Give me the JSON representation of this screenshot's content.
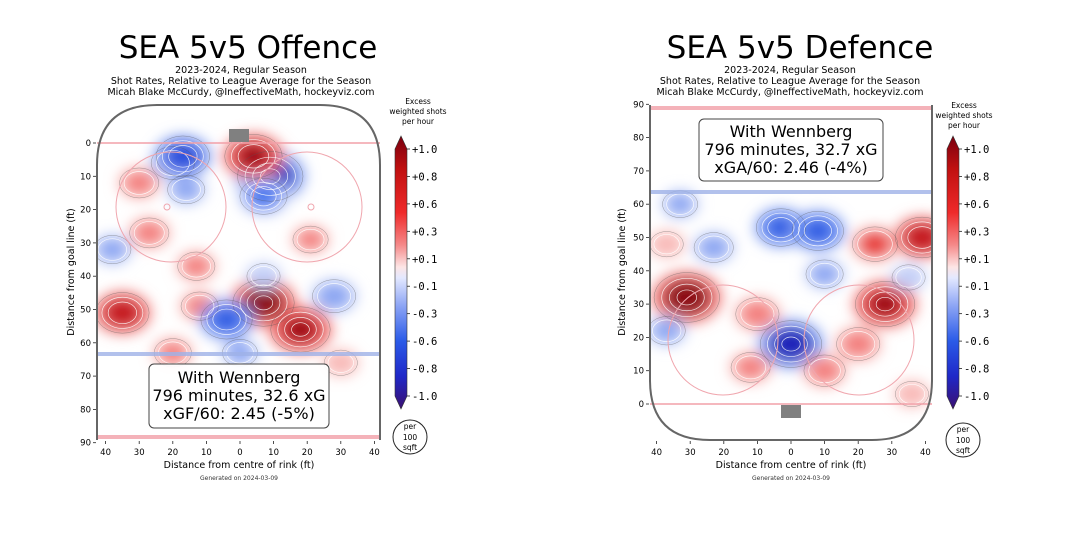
{
  "chart_data": [
    {
      "type": "heatmap",
      "title": "SEA 5v5 Offence",
      "subtitle_lines": [
        "2023-2024, Regular Season",
        "Shot Rates, Relative to League Average for the Season",
        "Micah Blake McCurdy, @IneffectiveMath, hockeyviz.com"
      ],
      "xlabel": "Distance from centre of rink (ft)",
      "ylabel": "Distance from goal line (ft)",
      "x_ticks": [
        "40",
        "30",
        "20",
        "10",
        "0",
        "10",
        "20",
        "30",
        "40"
      ],
      "y_ticks": [
        0,
        10,
        20,
        30,
        40,
        50,
        60,
        70,
        80,
        90
      ],
      "y_direction": "down",
      "xlim": [
        -42,
        42
      ],
      "ylim": [
        -4,
        90
      ],
      "annotation_lines": [
        "With Wennberg",
        "796 minutes, 32.6 xG",
        "xGF/60: 2.45 (-5%)"
      ],
      "colorbar_label_lines": [
        "Excess",
        "weighted shots",
        "per hour"
      ],
      "colorbar_ticks": [
        "+1.0",
        "+0.8",
        "+0.6",
        "+0.3",
        "+0.1",
        "-0.1",
        "-0.3",
        "-0.6",
        "-0.8",
        "-1.0"
      ],
      "unit_badge_lines": [
        "per",
        "100",
        "sqft"
      ],
      "footer": "Generated on 2024-03-09",
      "hotspots": [
        {
          "x": 9,
          "y": 10,
          "value": -1.0
        },
        {
          "x": -20,
          "y": 6,
          "value": -0.45
        },
        {
          "x": 7,
          "y": 16,
          "value": -0.55
        },
        {
          "x": -16,
          "y": 14,
          "value": -0.3
        },
        {
          "x": 4,
          "y": 4,
          "value": 0.8
        },
        {
          "x": -17,
          "y": 4,
          "value": -0.7
        },
        {
          "x": -30,
          "y": 12,
          "value": 0.35
        },
        {
          "x": -27,
          "y": 27,
          "value": 0.35
        },
        {
          "x": 21,
          "y": 29,
          "value": 0.25
        },
        {
          "x": -13,
          "y": 37,
          "value": 0.3
        },
        {
          "x": 7,
          "y": 48,
          "value": 0.9
        },
        {
          "x": 18,
          "y": 56,
          "value": 0.85
        },
        {
          "x": -35,
          "y": 51,
          "value": 0.7
        },
        {
          "x": -12,
          "y": 49,
          "value": 0.3
        },
        {
          "x": 28,
          "y": 46,
          "value": -0.45
        },
        {
          "x": -38,
          "y": 32,
          "value": -0.3
        },
        {
          "x": -4,
          "y": 53,
          "value": -0.65
        },
        {
          "x": 7,
          "y": 40,
          "value": -0.2
        },
        {
          "x": -20,
          "y": 63,
          "value": 0.3
        },
        {
          "x": 0,
          "y": 63,
          "value": -0.25
        },
        {
          "x": 30,
          "y": 66,
          "value": 0.2
        }
      ]
    },
    {
      "type": "heatmap",
      "title": "SEA 5v5 Defence",
      "subtitle_lines": [
        "2023-2024, Regular Season",
        "Shot Rates, Relative to League Average for the Season",
        "Micah Blake McCurdy, @IneffectiveMath, hockeyviz.com"
      ],
      "xlabel": "Distance from centre of rink (ft)",
      "ylabel": "Distance from goal line (ft)",
      "x_ticks": [
        "40",
        "30",
        "20",
        "10",
        "0",
        "10",
        "20",
        "30",
        "40"
      ],
      "y_ticks": [
        0,
        10,
        20,
        30,
        40,
        50,
        60,
        70,
        80,
        90
      ],
      "y_direction": "up",
      "xlim": [
        -42,
        42
      ],
      "ylim": [
        -4,
        90
      ],
      "annotation_lines": [
        "With Wennberg",
        "796 minutes, 32.7 xG",
        "xGA/60: 2.46 (-4%)"
      ],
      "colorbar_label_lines": [
        "Excess",
        "weighted shots",
        "per hour"
      ],
      "colorbar_ticks": [
        "+1.0",
        "+0.8",
        "+0.6",
        "+0.3",
        "+0.1",
        "-0.1",
        "-0.3",
        "-0.6",
        "-0.8",
        "-1.0"
      ],
      "unit_badge_lines": [
        "per",
        "100",
        "sqft"
      ],
      "footer": "Generated on 2024-03-09",
      "hotspots": [
        {
          "x": 0,
          "y": 18,
          "value": -0.9
        },
        {
          "x": 28,
          "y": 30,
          "value": 0.85
        },
        {
          "x": 39,
          "y": 50,
          "value": 0.7
        },
        {
          "x": -31,
          "y": 32,
          "value": 1.0
        },
        {
          "x": -10,
          "y": 27,
          "value": 0.45
        },
        {
          "x": 25,
          "y": 48,
          "value": 0.5
        },
        {
          "x": -3,
          "y": 53,
          "value": -0.6
        },
        {
          "x": 8,
          "y": 52,
          "value": -0.65
        },
        {
          "x": -23,
          "y": 47,
          "value": -0.35
        },
        {
          "x": 20,
          "y": 18,
          "value": 0.45
        },
        {
          "x": -37,
          "y": 48,
          "value": 0.2
        },
        {
          "x": 10,
          "y": 39,
          "value": -0.3
        },
        {
          "x": -37,
          "y": 22,
          "value": -0.3
        },
        {
          "x": -12,
          "y": 11,
          "value": 0.35
        },
        {
          "x": 10,
          "y": 10,
          "value": 0.4
        },
        {
          "x": -33,
          "y": 60,
          "value": -0.25
        },
        {
          "x": 35,
          "y": 38,
          "value": -0.2
        },
        {
          "x": 36,
          "y": 3,
          "value": 0.2
        }
      ]
    }
  ]
}
